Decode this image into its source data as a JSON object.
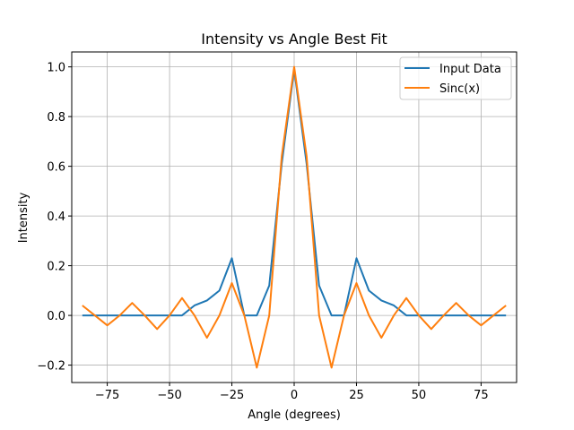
{
  "chart_data": {
    "type": "line",
    "title": "Intensity vs Angle Best Fit",
    "xlabel": "Angle (degrees)",
    "ylabel": "Intensity",
    "xlim": [
      -89.25,
      89.25
    ],
    "ylim": [
      -0.27,
      1.06
    ],
    "x_ticks": [
      -75,
      -50,
      -25,
      0,
      25,
      50,
      75
    ],
    "x_tick_labels": [
      "−75",
      "−50",
      "−25",
      "0",
      "25",
      "50",
      "75"
    ],
    "y_ticks": [
      -0.2,
      0.0,
      0.2,
      0.4,
      0.6,
      0.8,
      1.0
    ],
    "y_tick_labels": [
      "−0.2",
      "0.0",
      "0.2",
      "0.4",
      "0.6",
      "0.8",
      "1.0"
    ],
    "grid": true,
    "legend_position": "top-right",
    "x": [
      -85,
      -80,
      -75,
      -70,
      -65,
      -60,
      -55,
      -50,
      -45,
      -40,
      -35,
      -30,
      -25,
      -20,
      -15,
      -10,
      -5,
      0,
      5,
      10,
      15,
      20,
      25,
      30,
      35,
      40,
      45,
      50,
      55,
      60,
      65,
      70,
      75,
      80,
      85
    ],
    "series": [
      {
        "name": "Input Data",
        "color": "#1f77b4",
        "values": [
          0,
          0,
          0,
          0,
          0,
          0,
          0,
          0,
          0,
          0.04,
          0.06,
          0.1,
          0.23,
          0,
          0,
          0.12,
          0.61,
          0.99,
          0.61,
          0.12,
          0,
          0,
          0.23,
          0.1,
          0.06,
          0.04,
          0,
          0,
          0,
          0,
          0,
          0,
          0,
          0,
          0
        ]
      },
      {
        "name": "Sinc(x)",
        "color": "#ff7f0e",
        "values": [
          0.04,
          0,
          -0.04,
          0,
          0.05,
          0,
          -0.055,
          0,
          0.07,
          0,
          -0.09,
          0,
          0.13,
          0,
          -0.21,
          0,
          0.64,
          1.0,
          0.64,
          0,
          -0.21,
          0,
          0.13,
          0,
          -0.09,
          0,
          0.07,
          0,
          -0.055,
          0,
          0.05,
          0,
          -0.04,
          0,
          0.04
        ]
      }
    ]
  }
}
